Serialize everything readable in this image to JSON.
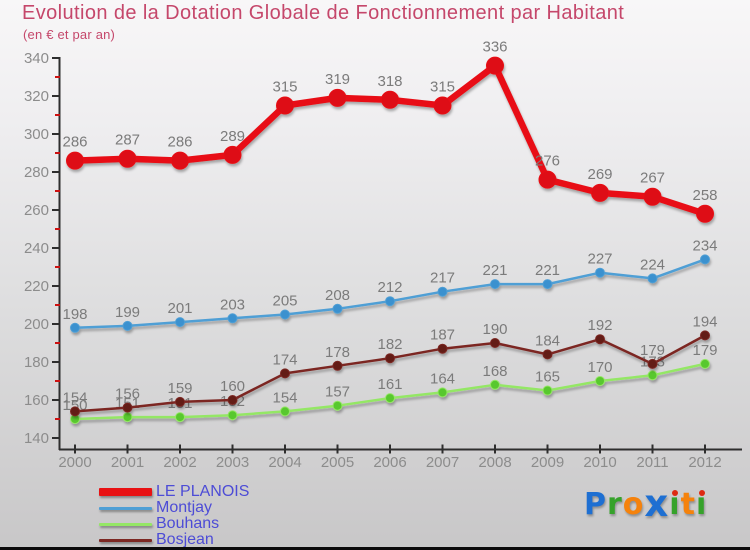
{
  "header": {
    "title": "Evolution de la Dotation Globale de Fonctionnement par Habitant",
    "subtitle": "(en € et par an)"
  },
  "chart_data": {
    "type": "line",
    "title": "Evolution de la Dotation Globale de Fonctionnement par Habitant",
    "subtitle": "(en € et par an)",
    "x": [
      2000,
      2001,
      2002,
      2003,
      2004,
      2005,
      2006,
      2007,
      2008,
      2009,
      2010,
      2011,
      2012
    ],
    "series": [
      {
        "name": "LE PLANOIS",
        "color": "#e81113",
        "marker_color": "#de0f12",
        "line_width": 6.5,
        "marker_radius": 8.5,
        "values": [
          286,
          287,
          286,
          289,
          315,
          319,
          318,
          315,
          336,
          276,
          269,
          267,
          258
        ]
      },
      {
        "name": "Montjay",
        "color": "#4f9fd5",
        "marker_color": "#3b91cf",
        "line_width": 2.5,
        "marker_radius": 4.5,
        "values": [
          198,
          199,
          201,
          203,
          205,
          208,
          212,
          217,
          221,
          221,
          227,
          224,
          234
        ]
      },
      {
        "name": "Bouhans",
        "color": "#94e765",
        "marker_color": "#59c82e",
        "line_width": 2.5,
        "marker_radius": 4.5,
        "values": [
          150,
          151,
          151,
          152,
          154,
          157,
          161,
          164,
          168,
          165,
          170,
          173,
          179
        ]
      },
      {
        "name": "Bosjean",
        "color": "#7c2823",
        "marker_color": "#641b16",
        "line_width": 2.5,
        "marker_radius": 4.5,
        "values": [
          154,
          156,
          159,
          160,
          174,
          178,
          182,
          187,
          190,
          184,
          192,
          179,
          194
        ]
      }
    ],
    "draw_order": [
      1,
      2,
      3,
      0
    ],
    "ylim": [
      140,
      340
    ],
    "y_major_step": 20,
    "y_minor_step": 10,
    "xlabel": "",
    "ylabel": "",
    "grid": false,
    "legend_position": "bottom-left",
    "data_labels_shown": true,
    "colors": {
      "axis_line": "#2e2e2e",
      "minor_tick": "#cc1111",
      "tick_label": "#8c8c8c",
      "data_label": "#7b7b7b",
      "title": "#c5476b",
      "legend_text": "#4d4cd6",
      "background_top": "#f8f7f8",
      "background_bottom": "#c8c7c8"
    }
  },
  "legend": {
    "items": [
      {
        "label": "LE PLANOIS",
        "color": "#e81113",
        "thick": true
      },
      {
        "label": "Montjay",
        "color": "#4f9fd5",
        "thick": false
      },
      {
        "label": "Bouhans",
        "color": "#94e765",
        "thick": false
      },
      {
        "label": "Bosjean",
        "color": "#7c2823",
        "thick": false
      }
    ]
  },
  "logo": {
    "name": "proxiti-logo",
    "letters": [
      {
        "ch": "P",
        "color": "#1e6fd2"
      },
      {
        "ch": "r",
        "color": "#36a22b"
      },
      {
        "ch": "o",
        "color": "#f5820c"
      },
      {
        "ch": "x",
        "color": "#1e6fd2",
        "big": true
      },
      {
        "ch": "i",
        "color": "#36a22b",
        "dot": "#dd2a12"
      },
      {
        "ch": "t",
        "color": "#f5820c"
      },
      {
        "ch": "i",
        "color": "#36a22b",
        "dot": "#dd2a12"
      }
    ]
  }
}
